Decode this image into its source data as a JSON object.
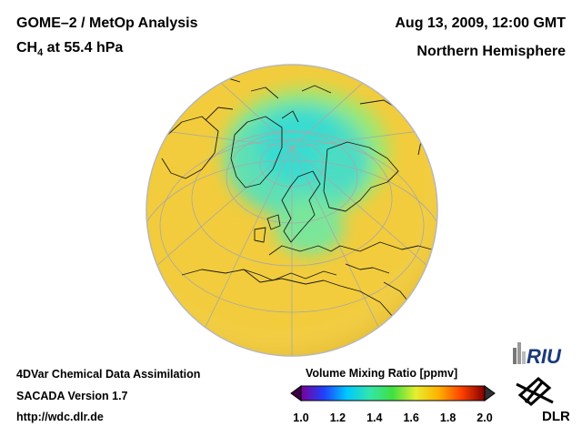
{
  "header": {
    "title_line1": "GOME–2 / MetOp Analysis",
    "title_species_prefix": "CH",
    "title_species_subscript": "4",
    "title_species_suffix": " at 55.4 hPa",
    "datetime": "Aug 13, 2009, 12:00 GMT",
    "region": "Northern Hemisphere"
  },
  "footer": {
    "line1": "4DVar Chemical Data Assimilation",
    "line2": "SACADA Version 1.7",
    "line3": "http://wdc.dlr.de"
  },
  "colorbar": {
    "title": "Volume Mixing Ratio [ppmv]",
    "ticks": [
      "1.0",
      "1.2",
      "1.4",
      "1.6",
      "1.8",
      "2.0"
    ],
    "stops": [
      "#7a0099",
      "#2040ff",
      "#00c8ff",
      "#33e6aa",
      "#40e040",
      "#e6ee30",
      "#ffb000",
      "#ff4000",
      "#800000"
    ]
  },
  "logos": {
    "riu": "RIU",
    "dlr": "DLR"
  },
  "map": {
    "projection": "orthographic",
    "hemisphere": "Northern",
    "colors": {
      "background_field": "#f2cc3c",
      "low_values": "#5ee0b4",
      "lowest_values": "#38dcd0",
      "coast": "#1a1a1a",
      "grid": "#a8a8a8"
    }
  }
}
